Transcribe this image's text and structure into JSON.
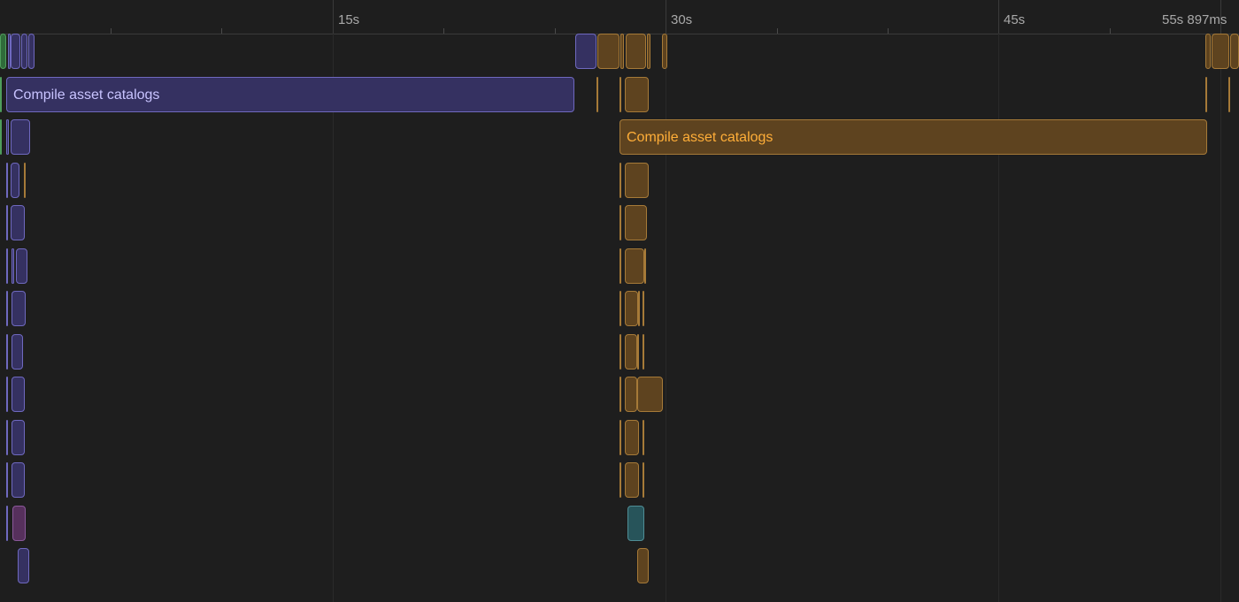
{
  "ruler": {
    "labels": [
      "15s",
      "30s",
      "45s",
      "55s 897ms"
    ]
  },
  "tasks": {
    "purple_catalog_label": "Compile asset catalogs",
    "orange_catalog_label": "Compile asset catalogs"
  },
  "colors": {
    "background": "#1e1e1e",
    "purple_fill": "#353161",
    "purple_border": "#6f69bf",
    "orange_fill": "#5e431f",
    "orange_border": "#a67a38",
    "teal_fill": "#27545a",
    "magenta_fill": "#56305c",
    "green_fill": "#2f6b3a"
  }
}
